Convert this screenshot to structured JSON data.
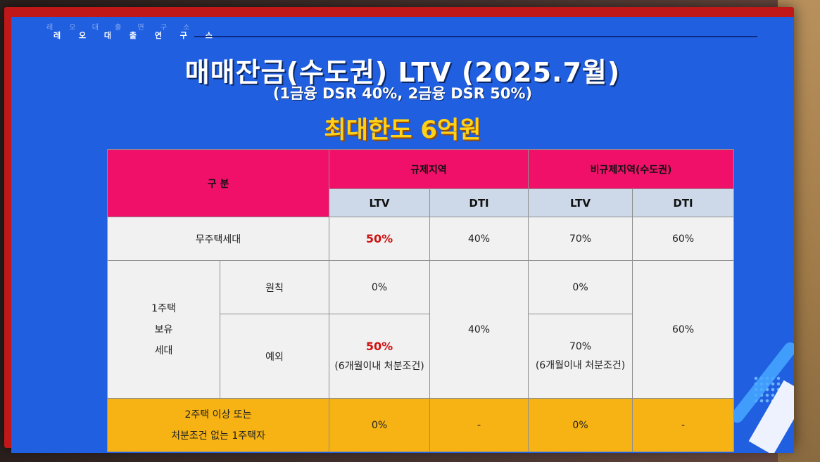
{
  "brand": {
    "text": "레 오 대 출 연 구 소"
  },
  "title": "매매잔금(수도권) LTV (2025.7월)",
  "subtitle": "(1금융 DSR 40%, 2금융 DSR 50%)",
  "highlight": "최대한도 6억원",
  "table": {
    "header_category": "구 분",
    "header_regulated": "규제지역",
    "header_non_regulated": "비규제지역(수도권)",
    "col_ltv": "LTV",
    "col_dti": "DTI",
    "row_no_house": {
      "label": "무주택세대",
      "reg_ltv": "50%",
      "reg_dti": "40%",
      "non_ltv": "70%",
      "non_dti": "60%"
    },
    "row_one_house": {
      "label_lines": [
        "1주택",
        "보유",
        "세대"
      ],
      "principle_label": "원칙",
      "principle_reg_ltv": "0%",
      "principle_non_ltv": "0%",
      "exception_label": "예외",
      "exception_reg_ltv": "50%",
      "exception_reg_note": "(6개월이내 처분조건)",
      "exception_non_ltv": "70%",
      "exception_non_note": "(6개월이내 처분조건)",
      "reg_dti": "40%",
      "non_dti": "60%"
    },
    "row_multi": {
      "label_line1": "2주택 이상 또는",
      "label_line2": "처분조건 없는 1주택자",
      "reg_ltv": "0%",
      "reg_dti": "-",
      "non_ltv": "0%",
      "non_dti": "-"
    }
  },
  "colors": {
    "slide_bg": "#1f5fe0",
    "header_pink": "#f0106a",
    "subheader_blue": "#cdd9e8",
    "highlight_yellow": "#ffd21a",
    "row_yellow": "#f6b313",
    "accent_red": "#d01010"
  }
}
